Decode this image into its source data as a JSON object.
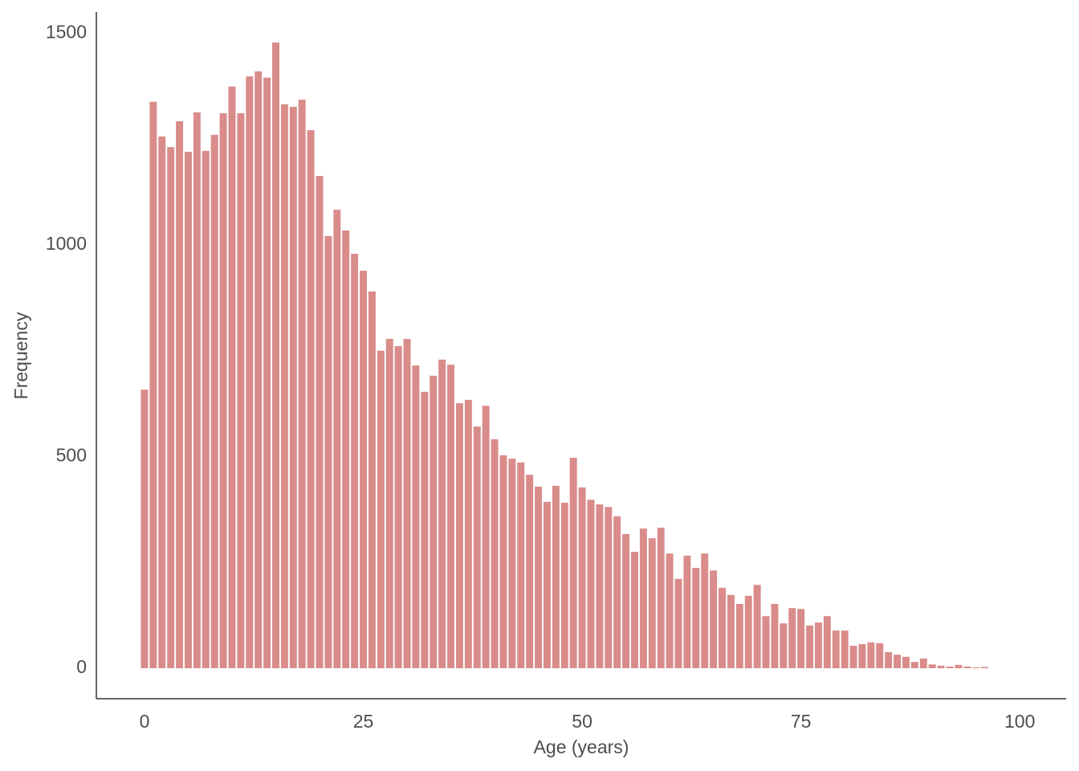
{
  "chart_data": {
    "type": "bar",
    "x_label": "Age (years)",
    "y_label": "Frequency",
    "x": [
      0,
      1,
      2,
      3,
      4,
      5,
      6,
      7,
      8,
      9,
      10,
      11,
      12,
      13,
      14,
      15,
      16,
      17,
      18,
      19,
      20,
      21,
      22,
      23,
      24,
      25,
      26,
      27,
      28,
      29,
      30,
      31,
      32,
      33,
      34,
      35,
      36,
      37,
      38,
      39,
      40,
      41,
      42,
      43,
      44,
      45,
      46,
      47,
      48,
      49,
      50,
      51,
      52,
      53,
      54,
      55,
      56,
      57,
      58,
      59,
      60,
      61,
      62,
      63,
      64,
      65,
      66,
      67,
      68,
      69,
      70,
      71,
      72,
      73,
      74,
      75,
      76,
      77,
      78,
      79,
      80,
      81,
      82,
      83,
      84,
      85,
      86,
      87,
      88,
      89,
      90,
      91,
      92,
      93,
      94,
      95,
      96
    ],
    "values": [
      658,
      1338,
      1256,
      1231,
      1292,
      1220,
      1313,
      1222,
      1260,
      1311,
      1374,
      1311,
      1398,
      1410,
      1395,
      1478,
      1332,
      1326,
      1343,
      1271,
      1163,
      1021,
      1083,
      1034,
      979,
      939,
      890,
      750,
      778,
      761,
      778,
      715,
      653,
      691,
      729,
      717,
      626,
      634,
      571,
      620,
      541,
      503,
      495,
      486,
      457,
      429,
      393,
      431,
      391,
      497,
      427,
      398,
      387,
      381,
      359,
      317,
      275,
      330,
      307,
      332,
      271,
      211,
      266,
      237,
      271,
      231,
      190,
      173,
      152,
      171,
      197,
      123,
      152,
      106,
      142,
      140,
      101,
      108,
      123,
      89,
      89,
      53,
      57,
      61,
      59,
      38,
      32,
      27,
      15,
      23,
      9,
      6,
      4,
      8,
      4,
      2,
      3
    ],
    "color": "#d98c8a",
    "xlim": [
      -5.5,
      105.3
    ],
    "ylim": [
      -72,
      1550
    ],
    "xticks": [
      0,
      25,
      50,
      75,
      100
    ],
    "yticks": [
      0,
      500,
      1000,
      1500
    ],
    "grid": false
  }
}
